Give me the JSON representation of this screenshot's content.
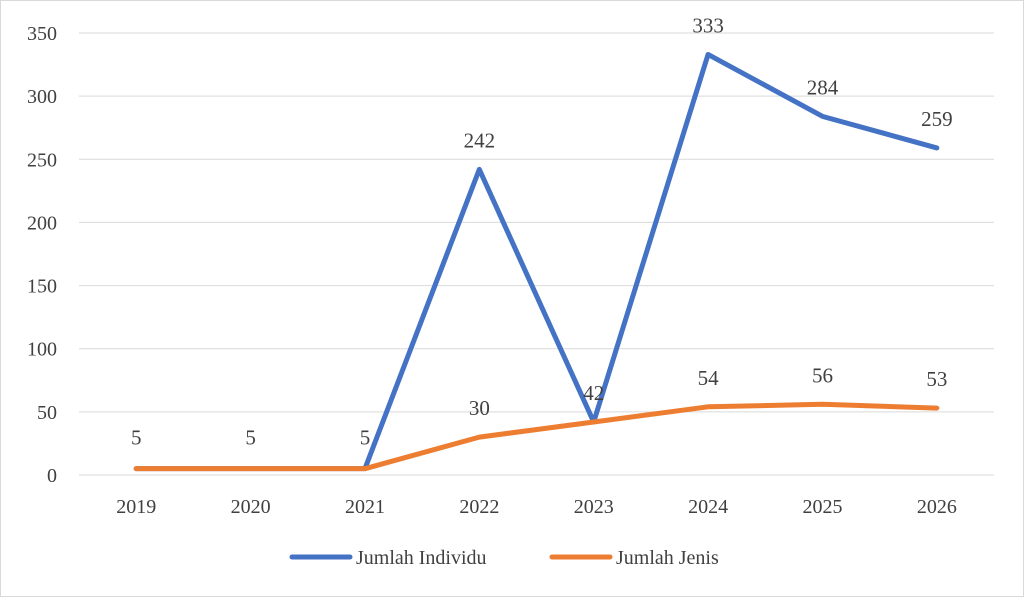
{
  "chart_data": {
    "type": "line",
    "categories": [
      "2019",
      "2020",
      "2021",
      "2022",
      "2023",
      "2024",
      "2025",
      "2026"
    ],
    "series": [
      {
        "name": "Jumlah Individu",
        "color": "#4472C4",
        "values": [
          5,
          5,
          5,
          242,
          42,
          333,
          284,
          259
        ],
        "labels": [
          "5",
          "5",
          "5",
          "242",
          "42",
          "333",
          "284",
          "259"
        ]
      },
      {
        "name": "Jumlah Jenis",
        "color": "#ED7D31",
        "values": [
          5,
          5,
          5,
          30,
          42,
          54,
          56,
          53
        ],
        "labels": [
          "5",
          "5",
          "5",
          "30",
          "42",
          "54",
          "56",
          "53"
        ]
      }
    ],
    "yticks": [
      "0",
      "50",
      "100",
      "150",
      "200",
      "250",
      "300",
      "350"
    ],
    "ylim": [
      0,
      350
    ],
    "grid": true,
    "legend": "bottom"
  }
}
